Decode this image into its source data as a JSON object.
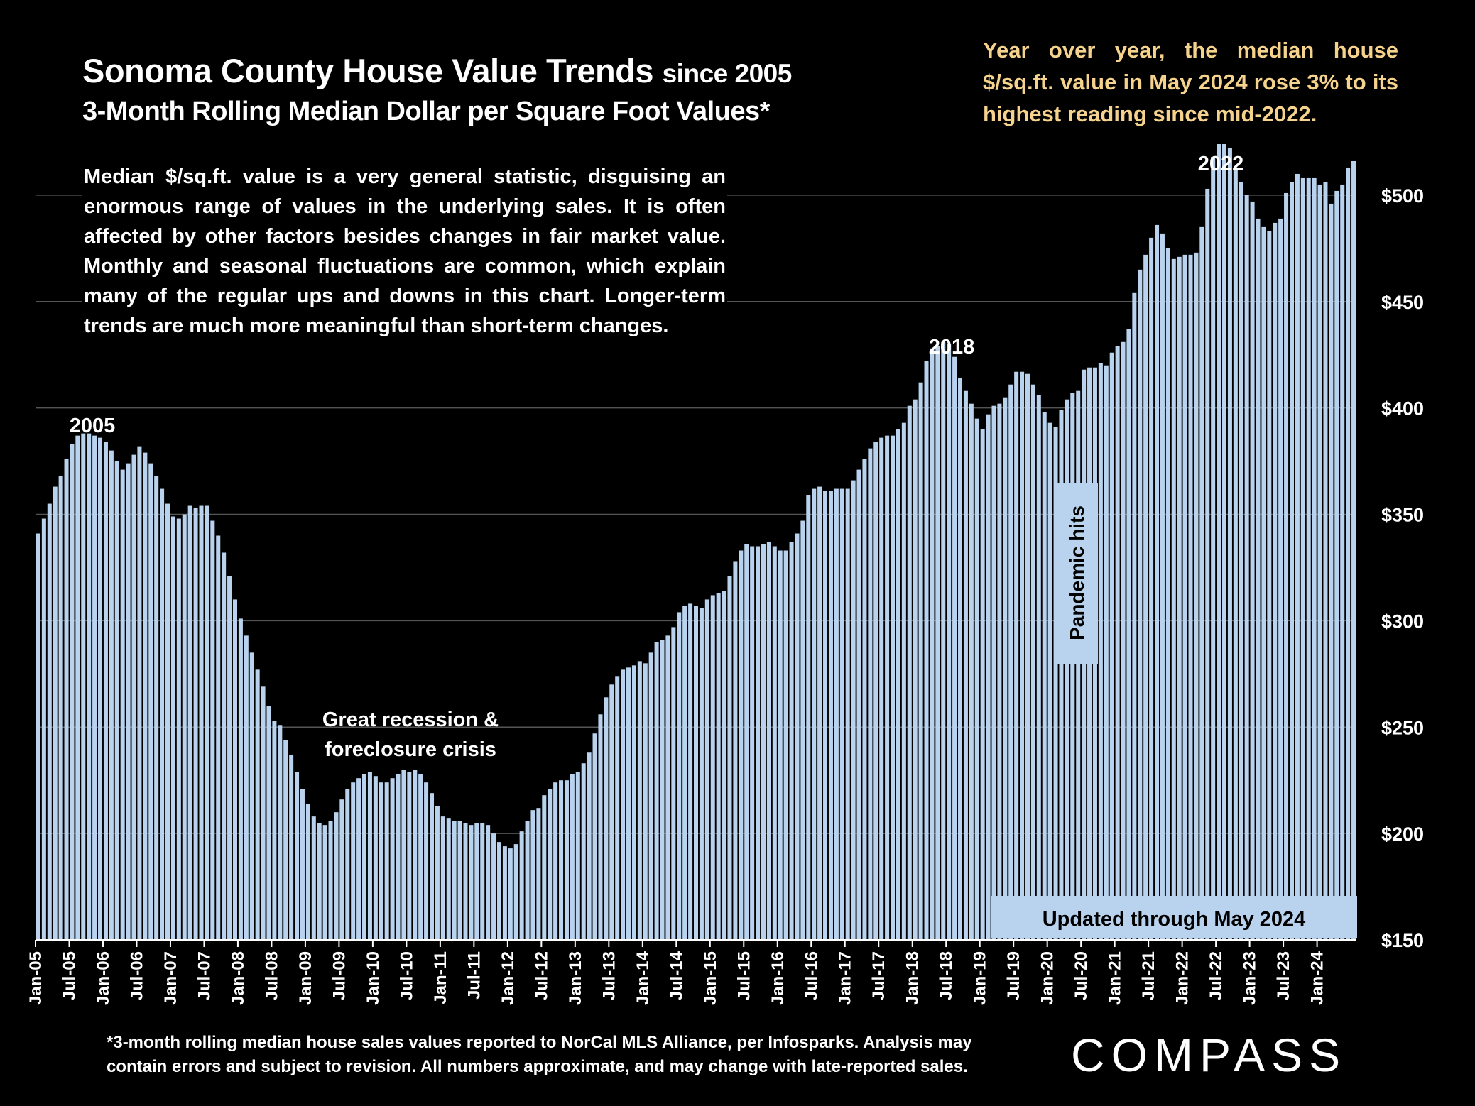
{
  "title_main": "Sonoma County House Value Trends",
  "title_since": "since 2005",
  "subtitle": "3-Month Rolling Median Dollar per Square Foot Values*",
  "callout": "Year over year, the median house $/sq.ft. value in May 2024 rose 3% to its highest reading since mid-2022.",
  "note": "Median $/sq.ft. value is a very general statistic, disguising an enormous range of values in the underlying sales. It is often affected by other factors besides changes in fair market value. Monthly and seasonal fluctuations are common, which explain many of the regular ups and downs in this chart. Longer-term trends are much more meaningful than short-term changes.",
  "footnote": "*3-month rolling median house sales values reported to NorCal MLS Alliance, per Infosparks. Analysis may contain errors and subject to revision. All numbers approximate, and may change with late-reported sales.",
  "logo": "COMPASS",
  "colors": {
    "bar": "#b9d3ee",
    "callout": "#f6d38c",
    "grid": "#555555"
  },
  "chart_data": {
    "type": "bar",
    "start": "Jan-05",
    "tick_labels": [
      "Jan-05",
      "Jul-05",
      "Jan-06",
      "Jul-06",
      "Jan-07",
      "Jul-07",
      "Jan-08",
      "Jul-08",
      "Jan-09",
      "Jul-09",
      "Jan-10",
      "Jul-10",
      "Jan-11",
      "Jul-11",
      "Jan-12",
      "Jul-12",
      "Jan-13",
      "Jul-13",
      "Jan-14",
      "Jul-14",
      "Jan-15",
      "Jul-15",
      "Jan-16",
      "Jul-16",
      "Jan-17",
      "Jul-17",
      "Jan-18",
      "Jul-18",
      "Jan-19",
      "Jul-19",
      "Jan-20",
      "Jul-20",
      "Jan-21",
      "Jul-21",
      "Jan-22",
      "Jul-22",
      "Jan-23",
      "Jul-23",
      "Jan-24"
    ],
    "y_ticks": [
      "$150",
      "$200",
      "$250",
      "$300",
      "$350",
      "$400",
      "$450",
      "$500"
    ],
    "ylim": [
      150,
      525
    ],
    "y_axis_position": "right",
    "values": [
      341,
      348,
      355,
      363,
      368,
      376,
      383,
      387,
      388,
      388,
      387,
      386,
      384,
      380,
      375,
      371,
      374,
      378,
      382,
      379,
      374,
      368,
      362,
      355,
      349,
      348,
      350,
      354,
      353,
      354,
      354,
      347,
      340,
      332,
      321,
      310,
      301,
      293,
      285,
      277,
      269,
      260,
      253,
      251,
      244,
      237,
      229,
      221,
      214,
      208,
      205,
      204,
      206,
      210,
      216,
      221,
      224,
      226,
      228,
      229,
      227,
      224,
      224,
      226,
      228,
      230,
      229,
      230,
      228,
      224,
      219,
      213,
      208,
      207,
      206,
      206,
      205,
      204,
      205,
      205,
      204,
      200,
      196,
      194,
      193,
      195,
      201,
      206,
      211,
      212,
      218,
      221,
      224,
      225,
      225,
      228,
      229,
      233,
      238,
      247,
      256,
      264,
      270,
      274,
      277,
      278,
      279,
      281,
      280,
      285,
      290,
      291,
      293,
      297,
      304,
      307,
      308,
      307,
      306,
      310,
      312,
      313,
      314,
      321,
      328,
      333,
      336,
      335,
      335,
      336,
      337,
      335,
      333,
      333,
      337,
      341,
      347,
      359,
      362,
      363,
      361,
      361,
      362,
      362,
      362,
      366,
      371,
      376,
      381,
      384,
      386,
      387,
      387,
      390,
      393,
      401,
      404,
      412,
      422,
      428,
      429,
      431,
      430,
      424,
      414,
      408,
      402,
      395,
      390,
      397,
      401,
      402,
      405,
      411,
      417,
      417,
      416,
      411,
      406,
      398,
      393,
      391,
      399,
      404,
      407,
      408,
      418,
      419,
      419,
      421,
      420,
      426,
      429,
      431,
      437,
      454,
      465,
      472,
      480,
      486,
      482,
      475,
      470,
      471,
      472,
      472,
      473,
      485,
      503,
      518,
      524,
      524,
      522,
      513,
      506,
      500,
      497,
      489,
      485,
      483,
      487,
      489,
      501,
      506,
      510,
      508,
      508,
      508,
      505,
      506,
      496,
      502,
      505,
      513,
      516
    ]
  },
  "annotations": {
    "a2005": "2005",
    "a2018": "2018",
    "a2022": "2022",
    "recession_line1": "Great recession &",
    "recession_line2": "foreclosure crisis",
    "pandemic": "Pandemic hits",
    "updated": "Updated through May 2024"
  }
}
